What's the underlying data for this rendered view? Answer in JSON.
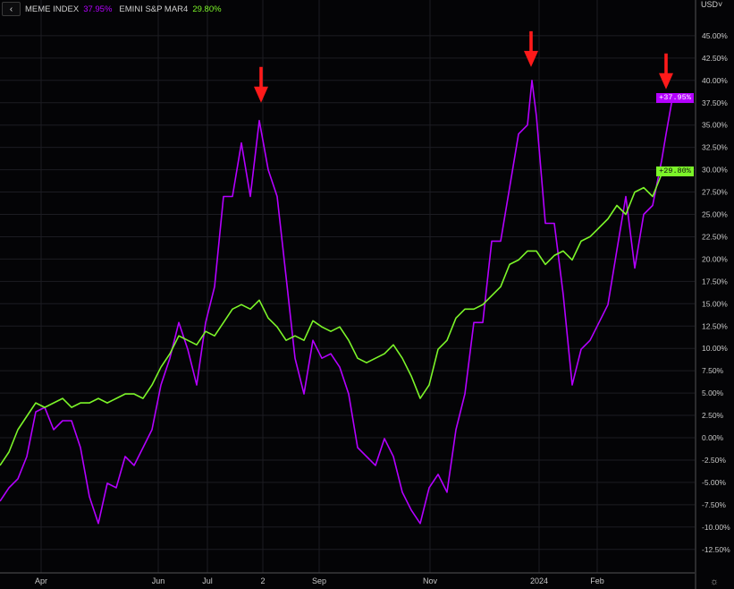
{
  "header": {
    "back_icon": "chevron-left-icon",
    "series": [
      {
        "name": "MEME INDEX",
        "value": "37.95%",
        "color": "#b400ff"
      },
      {
        "name": "EMINI S&P MAR4",
        "value": "29.80%",
        "color": "#7cf529"
      }
    ],
    "currency": "USD",
    "currency_caret": "˅"
  },
  "price_tags": {
    "meme": "+37.95%",
    "emini": "+29.80%"
  },
  "settings_icon": "gear-icon",
  "chart_data": {
    "type": "line",
    "title": "",
    "xlabel": "",
    "ylabel": "",
    "x_unit": "session index",
    "xlim": [
      0,
      77.7
    ],
    "ylim": [
      -14.4,
      48.5
    ],
    "grid": true,
    "legend": "top-left",
    "x_ticks": [
      {
        "x": 4.6,
        "label": "Apr"
      },
      {
        "x": 17.7,
        "label": "Jun"
      },
      {
        "x": 23.2,
        "label": "Jul"
      },
      {
        "x": 29.4,
        "label": "2"
      },
      {
        "x": 35.7,
        "label": "Sep"
      },
      {
        "x": 48.1,
        "label": "Nov"
      },
      {
        "x": 60.3,
        "label": "2024"
      },
      {
        "x": 66.8,
        "label": "Feb"
      }
    ],
    "y_ticks": [
      45,
      42.5,
      40,
      37.5,
      35,
      32.5,
      30,
      27.5,
      25,
      22.5,
      20,
      17.5,
      15,
      12.5,
      10,
      7.5,
      5,
      2.5,
      0,
      -2.5,
      -5,
      -7.5,
      -10,
      -12.5
    ],
    "y_tick_labels": [
      "45.00%",
      "42.50%",
      "40.00%",
      "37.50%",
      "35.00%",
      "32.50%",
      "30.00%",
      "27.50%",
      "25.00%",
      "22.50%",
      "20.00%",
      "17.50%",
      "15.00%",
      "12.50%",
      "10.00%",
      "7.50%",
      "5.00%",
      "2.50%",
      "0.00%",
      "-2.50%",
      "-5.00%",
      "-7.50%",
      "-10.00%",
      "-12.50%"
    ],
    "series": [
      {
        "name": "MEME INDEX",
        "color": "#b400ff",
        "x": [
          0,
          1,
          2,
          3,
          4,
          5,
          6,
          7,
          8,
          9,
          10,
          11,
          12,
          13,
          14,
          15,
          16,
          17,
          18,
          19,
          20,
          21,
          22,
          23,
          24,
          25,
          26,
          27,
          28,
          29,
          30,
          31,
          32,
          33,
          34,
          35,
          36,
          37,
          38,
          39,
          40,
          41,
          42,
          43,
          44,
          45,
          46,
          47,
          48,
          49,
          50,
          51,
          52,
          53,
          54,
          55,
          56,
          57,
          58,
          59,
          59.5,
          60,
          61,
          62,
          63,
          64,
          65,
          66,
          67,
          68,
          69,
          70,
          71,
          72,
          73,
          74,
          74.5,
          75.2
        ],
        "values": [
          -7.1,
          -5.6,
          -4.6,
          -2.1,
          2.9,
          3.4,
          0.9,
          1.9,
          1.9,
          -1.1,
          -6.6,
          -9.6,
          -5.1,
          -5.6,
          -2.1,
          -3.1,
          -1.1,
          0.9,
          5.9,
          8.9,
          12.9,
          9.9,
          5.9,
          12.9,
          16.9,
          27,
          27,
          33,
          27,
          35.5,
          30,
          27,
          18,
          8.9,
          4.9,
          10.9,
          8.9,
          9.4,
          7.9,
          4.9,
          -1.1,
          -2.1,
          -3.1,
          -0.1,
          -2.1,
          -6.1,
          -8.1,
          -9.6,
          -5.6,
          -4.1,
          -6.1,
          0.9,
          4.9,
          12.9,
          12.9,
          22,
          22,
          28,
          34,
          35,
          40,
          36,
          24,
          24,
          16,
          5.9,
          9.9,
          10.9,
          12.9,
          14.9,
          21,
          27,
          19,
          25,
          26,
          31,
          34,
          37.95
        ]
      },
      {
        "name": "EMINI S&P MAR4",
        "color": "#7cf529",
        "x": [
          0,
          1,
          2,
          3,
          4,
          5,
          6,
          7,
          8,
          9,
          10,
          11,
          12,
          13,
          14,
          15,
          16,
          17,
          18,
          19,
          20,
          21,
          22,
          23,
          24,
          25,
          26,
          27,
          28,
          29,
          30,
          31,
          32,
          33,
          34,
          35,
          36,
          37,
          38,
          39,
          40,
          41,
          42,
          43,
          44,
          45,
          46,
          47,
          48,
          49,
          50,
          51,
          52,
          53,
          54,
          55,
          56,
          57,
          58,
          59,
          60,
          61,
          62,
          63,
          64,
          65,
          66,
          67,
          68,
          69,
          70,
          71,
          72,
          73,
          74,
          75.2
        ],
        "values": [
          -3.1,
          -1.6,
          0.9,
          2.4,
          3.9,
          3.4,
          3.9,
          4.4,
          3.4,
          3.9,
          3.9,
          4.4,
          3.9,
          4.4,
          4.9,
          4.9,
          4.4,
          5.9,
          7.9,
          9.4,
          11.4,
          10.9,
          10.4,
          11.9,
          11.4,
          12.9,
          14.4,
          14.9,
          14.4,
          15.4,
          13.4,
          12.4,
          10.9,
          11.4,
          10.9,
          13.1,
          12.4,
          11.9,
          12.4,
          10.9,
          8.9,
          8.4,
          8.9,
          9.4,
          10.4,
          8.9,
          6.9,
          4.4,
          5.9,
          9.9,
          10.9,
          13.4,
          14.4,
          14.4,
          14.9,
          15.9,
          16.9,
          19.4,
          19.9,
          20.9,
          20.9,
          19.4,
          20.4,
          20.9,
          19.9,
          22,
          22.5,
          23.5,
          24.5,
          26,
          25,
          27.5,
          28,
          27,
          29.5,
          29.8
        ]
      }
    ],
    "annotations": [
      {
        "type": "arrow-down",
        "x": 29.2,
        "y": 37.5,
        "color": "#ff1a1a"
      },
      {
        "type": "arrow-down",
        "x": 59.4,
        "y": 41.5,
        "color": "#ff1a1a"
      },
      {
        "type": "arrow-down",
        "x": 74.5,
        "y": 39,
        "color": "#ff1a1a"
      }
    ]
  }
}
